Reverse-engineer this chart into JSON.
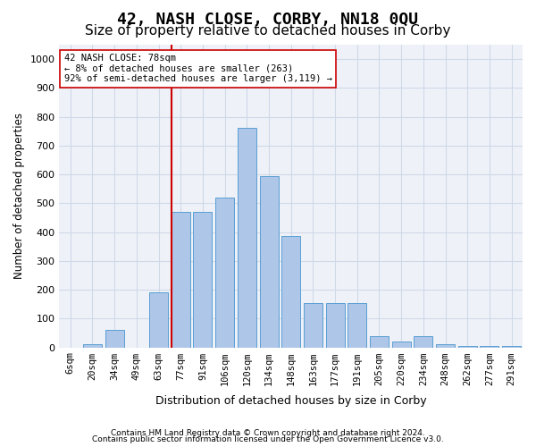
{
  "title": "42, NASH CLOSE, CORBY, NN18 0QU",
  "subtitle": "Size of property relative to detached houses in Corby",
  "xlabel": "Distribution of detached houses by size in Corby",
  "ylabel": "Number of detached properties",
  "footnote1": "Contains HM Land Registry data © Crown copyright and database right 2024.",
  "footnote2": "Contains public sector information licensed under the Open Government Licence v3.0.",
  "annotation_line1": "42 NASH CLOSE: 78sqm",
  "annotation_line2": "← 8% of detached houses are smaller (263)",
  "annotation_line3": "92% of semi-detached houses are larger (3,119) →",
  "bar_color": "#aec6e8",
  "bar_edge_color": "#5a9fd4",
  "ref_line_color": "#cc0000",
  "ref_line_index": 5,
  "categories": [
    "6sqm",
    "20sqm",
    "34sqm",
    "49sqm",
    "63sqm",
    "77sqm",
    "91sqm",
    "106sqm",
    "120sqm",
    "134sqm",
    "148sqm",
    "163sqm",
    "177sqm",
    "191sqm",
    "205sqm",
    "220sqm",
    "234sqm",
    "248sqm",
    "262sqm",
    "277sqm",
    "291sqm"
  ],
  "values": [
    0,
    10,
    60,
    0,
    190,
    470,
    470,
    520,
    760,
    595,
    385,
    155,
    155,
    155,
    38,
    20,
    40,
    10,
    5,
    5,
    5
  ],
  "ylim": [
    0,
    1050
  ],
  "yticks": [
    0,
    100,
    200,
    300,
    400,
    500,
    600,
    700,
    800,
    900,
    1000
  ],
  "grid_color": "#d0d8e8",
  "bg_color": "#eef2f8",
  "title_fontsize": 13,
  "subtitle_fontsize": 11
}
